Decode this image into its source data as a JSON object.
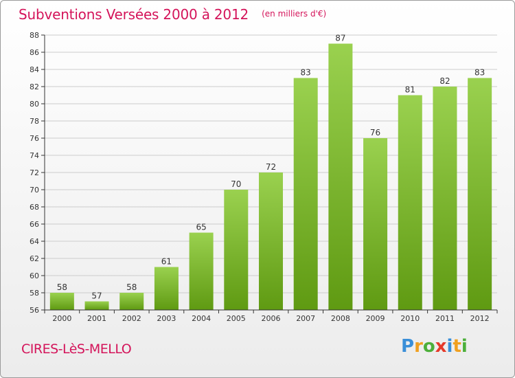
{
  "header": {
    "title": "Subventions Versées 2000 à 2012",
    "subtitle": "(en milliers d'€)"
  },
  "footer": {
    "commune": "CIRES-LèS-MELLO",
    "logo_letters": [
      "P",
      "r",
      "o",
      "x",
      "i",
      "t",
      "i"
    ],
    "logo_colors": [
      "#3a8fd8",
      "#f0a020",
      "#4caf3a",
      "#e53a2a",
      "#3a8fd8",
      "#f0a020",
      "#4caf3a"
    ]
  },
  "colors": {
    "bar_light": "#9ad14f",
    "bar_dark": "#5f9a12",
    "grid": "#cccccc",
    "axis": "#333333",
    "text": "#333333",
    "accent": "#d4145a"
  },
  "chart_data": {
    "type": "bar",
    "categories": [
      "2000",
      "2001",
      "2002",
      "2003",
      "2004",
      "2005",
      "2006",
      "2007",
      "2008",
      "2009",
      "2010",
      "2011",
      "2012"
    ],
    "values": [
      58,
      57,
      58,
      61,
      65,
      70,
      72,
      83,
      87,
      76,
      81,
      82,
      83
    ],
    "title": "Subventions Versées 2000 à 2012",
    "subtitle": "(en milliers d'€)",
    "xlabel": "",
    "ylabel": "",
    "ylim": [
      56,
      88
    ],
    "yticks": [
      56,
      58,
      60,
      62,
      64,
      66,
      68,
      70,
      72,
      74,
      76,
      78,
      80,
      82,
      84,
      86,
      88
    ],
    "grid": true,
    "legend": "none",
    "data_labels": true
  }
}
